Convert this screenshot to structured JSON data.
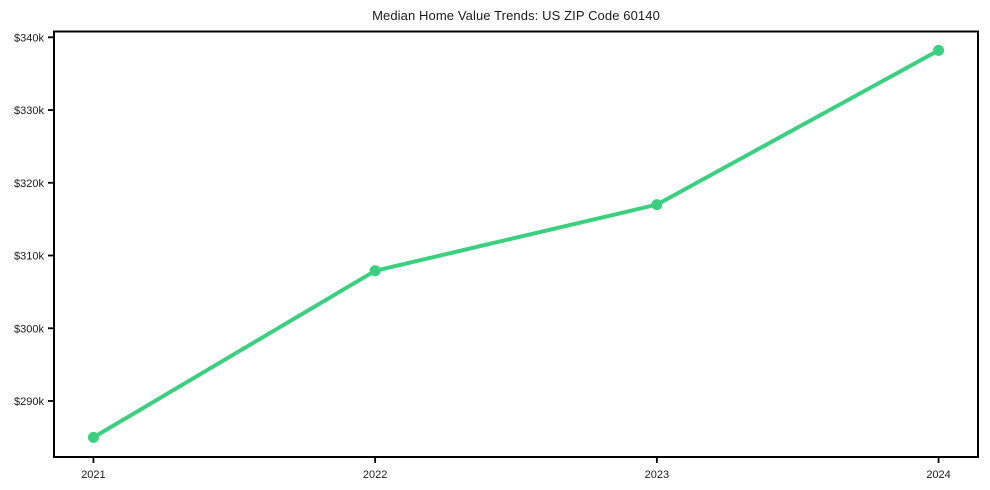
{
  "page": {
    "background_color": "#ffffff",
    "text_color": "#1a1a1a"
  },
  "chart_data": {
    "type": "line",
    "title": "Median Home Value Trends: US ZIP Code 60140",
    "x": [
      "2021",
      "2022",
      "2023",
      "2024"
    ],
    "series": [
      {
        "name": "Median Home Value",
        "color": "#3bd080",
        "marker": "circle",
        "values": [
          285000,
          307900,
          317000,
          338200
        ]
      }
    ],
    "xlabel": "",
    "ylabel": "",
    "xticks": [
      "2021",
      "2022",
      "2023",
      "2024"
    ],
    "yticks": [
      {
        "value": 290000,
        "label": "$290k"
      },
      {
        "value": 300000,
        "label": "$300k"
      },
      {
        "value": 310000,
        "label": "$310k"
      },
      {
        "value": 320000,
        "label": "$320k"
      },
      {
        "value": 330000,
        "label": "$330k"
      },
      {
        "value": 340000,
        "label": "$340k"
      }
    ],
    "ylim": [
      282300,
      340800
    ],
    "xlim_years": [
      2020.86,
      2024.14
    ],
    "grid": false,
    "legend": null,
    "frame_color": "#000000"
  }
}
